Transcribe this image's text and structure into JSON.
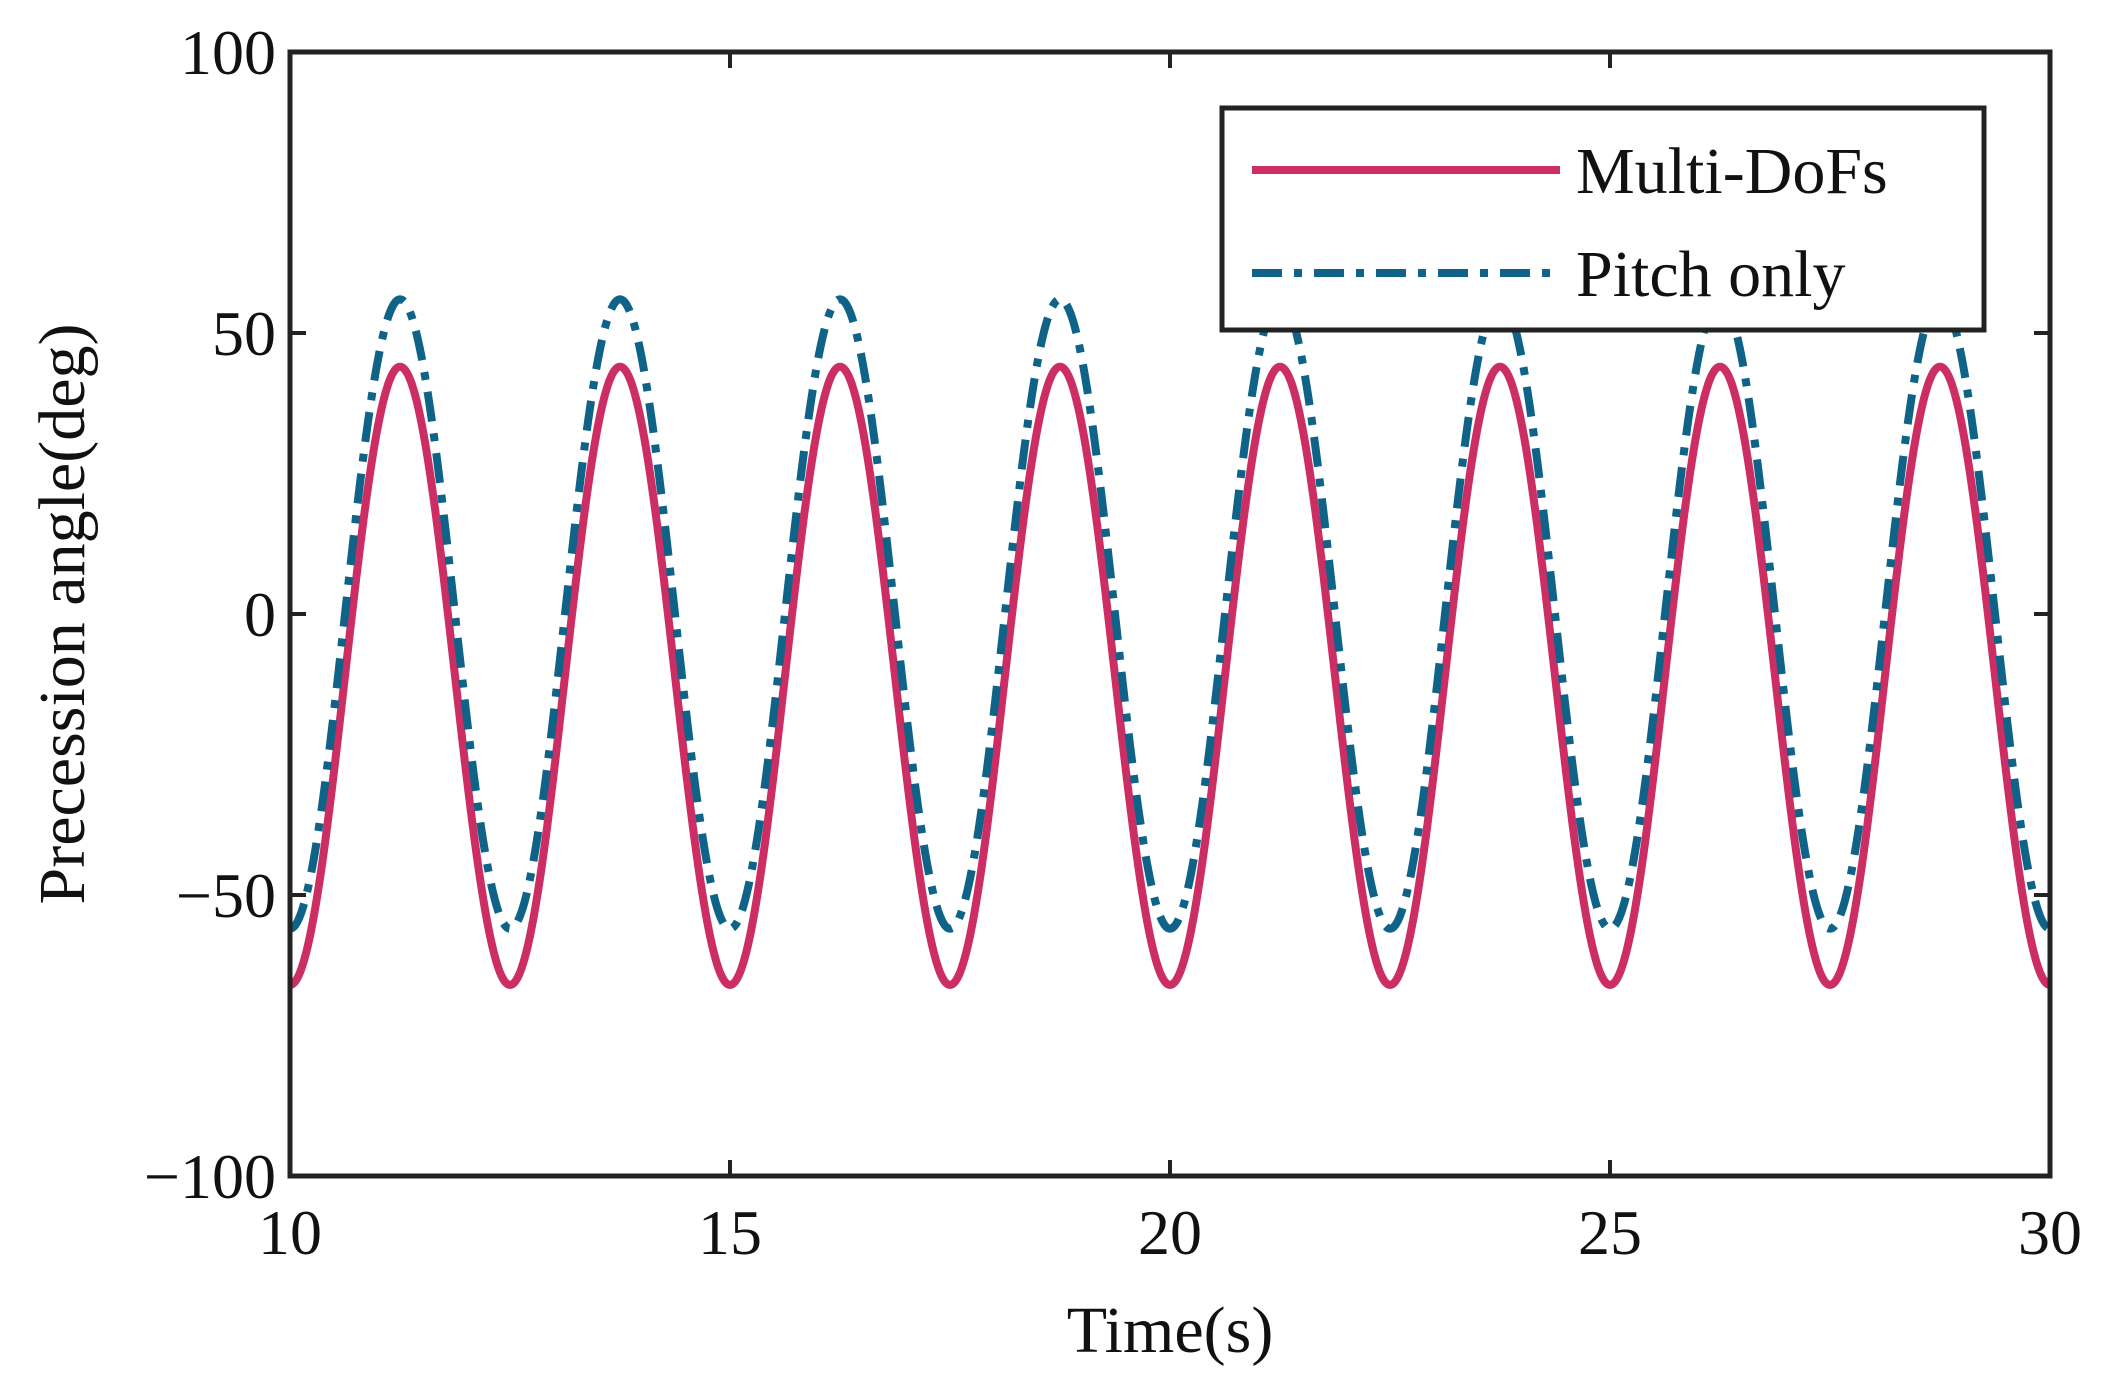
{
  "chart_data": {
    "type": "line",
    "title": "",
    "xlabel": "Time(s)",
    "ylabel": "Precession angle(deg)",
    "xlim": [
      10,
      30
    ],
    "ylim": [
      -100,
      100
    ],
    "xticks": [
      10,
      15,
      20,
      25,
      30
    ],
    "yticks": [
      -100,
      -50,
      0,
      50,
      100
    ],
    "xtick_labels": [
      "10",
      "15",
      "20",
      "25",
      "30"
    ],
    "ytick_labels": [
      "−100",
      "−50",
      "0",
      "50",
      "100"
    ],
    "grid": false,
    "legend_position": "top-right",
    "series": [
      {
        "name": "Multi-DoFs",
        "style": "solid",
        "color": "#cc2e63",
        "period": 2.5,
        "peak_time": 11.25,
        "max": 44,
        "min": -66
      },
      {
        "name": "Pitch only",
        "style": "dash-dot",
        "color": "#0f6389",
        "period": 2.5,
        "peak_time": 11.25,
        "max": 56,
        "min": -56
      }
    ]
  }
}
